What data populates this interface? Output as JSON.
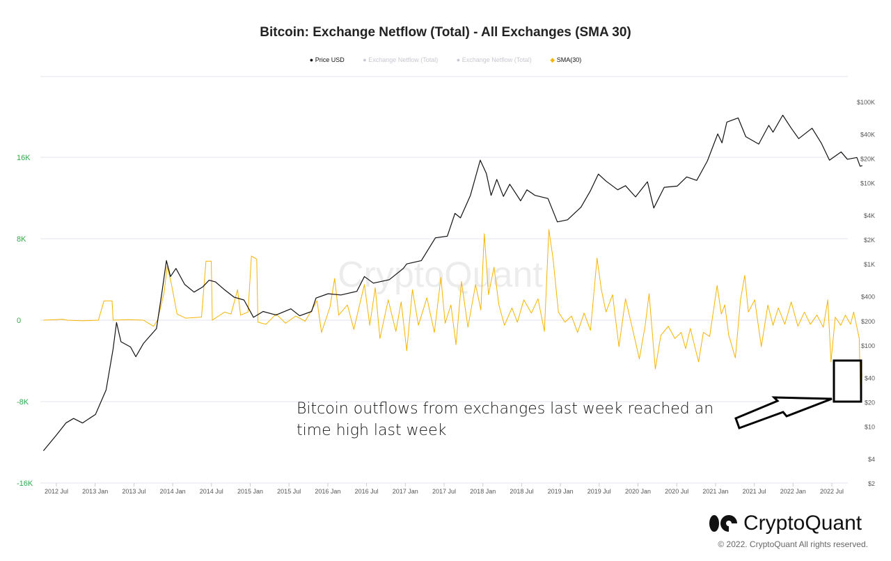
{
  "chart_data": {
    "type": "line",
    "title": "Bitcoin: Exchange Netflow (Total) - All Exchanges (SMA 30)",
    "legend": [
      {
        "name": "Price USD",
        "color": "#111111",
        "active": true
      },
      {
        "name": "Exchange Netflow (Total)",
        "color": "#c8c8d0",
        "active": false
      },
      {
        "name": "Exchange Netflow (Total)",
        "color": "#c8c8d0",
        "active": false
      },
      {
        "name": "SMA(30)",
        "color": "#f5b400",
        "active": true
      }
    ],
    "legend_position": "top",
    "left_axis": {
      "ticks": [
        "16K",
        "8K",
        "0",
        "-8K",
        "-16K"
      ],
      "values": [
        16000,
        8000,
        0,
        -8000,
        -16000
      ],
      "range": [
        -16000,
        16000
      ],
      "color": "#2eaa4a"
    },
    "right_axis": {
      "scale": "log",
      "ticks": [
        "$100K",
        "$40K",
        "$20K",
        "$10K",
        "$4K",
        "$2K",
        "$1K",
        "$400",
        "$200",
        "$100",
        "$40",
        "$20",
        "$10",
        "$4",
        "$2"
      ],
      "values": [
        100000,
        40000,
        20000,
        10000,
        4000,
        2000,
        1000,
        400,
        200,
        100,
        40,
        20,
        10,
        4,
        2
      ],
      "range": [
        2,
        100000
      ]
    },
    "x_axis": {
      "ticks": [
        "2012 Jul",
        "2013 Jan",
        "2013 Jul",
        "2014 Jan",
        "2014 Jul",
        "2015 Jan",
        "2015 Jul",
        "2016 Jan",
        "2016 Jul",
        "2017 Jan",
        "2017 Jul",
        "2018 Jan",
        "2018 Jul",
        "2019 Jan",
        "2019 Jul",
        "2020 Jan",
        "2020 Jul",
        "2021 Jan",
        "2021 Jul",
        "2022 Jan",
        "2022 Jul"
      ]
    },
    "grid": true,
    "series": [
      {
        "name": "Price USD",
        "axis": "right",
        "color": "#111111",
        "points": [
          [
            "2012-05-01",
            5
          ],
          [
            "2012-07-01",
            7.8
          ],
          [
            "2012-08-15",
            11
          ],
          [
            "2012-09-20",
            12.5
          ],
          [
            "2012-11-01",
            11
          ],
          [
            "2013-01-01",
            14
          ],
          [
            "2013-02-20",
            28
          ],
          [
            "2013-03-25",
            90
          ],
          [
            "2013-04-10",
            190
          ],
          [
            "2013-05-01",
            110
          ],
          [
            "2013-06-15",
            95
          ],
          [
            "2013-07-10",
            72
          ],
          [
            "2013-08-15",
            105
          ],
          [
            "2013-10-15",
            160
          ],
          [
            "2013-11-10",
            450
          ],
          [
            "2013-12-01",
            1100
          ],
          [
            "2013-12-20",
            700
          ],
          [
            "2014-01-15",
            880
          ],
          [
            "2014-02-25",
            560
          ],
          [
            "2014-04-10",
            450
          ],
          [
            "2014-05-20",
            520
          ],
          [
            "2014-06-20",
            630
          ],
          [
            "2014-07-20",
            600
          ],
          [
            "2014-09-01",
            480
          ],
          [
            "2014-10-15",
            390
          ],
          [
            "2014-12-01",
            360
          ],
          [
            "2015-01-15",
            220
          ],
          [
            "2015-03-01",
            260
          ],
          [
            "2015-05-01",
            235
          ],
          [
            "2015-07-10",
            280
          ],
          [
            "2015-08-20",
            230
          ],
          [
            "2015-10-15",
            260
          ],
          [
            "2015-11-05",
            380
          ],
          [
            "2016-01-01",
            430
          ],
          [
            "2016-03-01",
            415
          ],
          [
            "2016-05-15",
            460
          ],
          [
            "2016-06-20",
            700
          ],
          [
            "2016-08-01",
            580
          ],
          [
            "2016-10-15",
            640
          ],
          [
            "2016-12-20",
            880
          ],
          [
            "2017-01-05",
            1000
          ],
          [
            "2017-03-15",
            1100
          ],
          [
            "2017-05-20",
            2100
          ],
          [
            "2017-07-15",
            2200
          ],
          [
            "2017-08-20",
            4200
          ],
          [
            "2017-09-15",
            3700
          ],
          [
            "2017-11-01",
            7000
          ],
          [
            "2017-12-17",
            19000
          ],
          [
            "2018-01-15",
            13000
          ],
          [
            "2018-02-06",
            7000
          ],
          [
            "2018-03-05",
            11000
          ],
          [
            "2018-04-05",
            6800
          ],
          [
            "2018-05-05",
            9600
          ],
          [
            "2018-06-25",
            6000
          ],
          [
            "2018-07-25",
            8200
          ],
          [
            "2018-09-01",
            7000
          ],
          [
            "2018-11-01",
            6400
          ],
          [
            "2018-12-15",
            3300
          ],
          [
            "2019-02-01",
            3500
          ],
          [
            "2019-04-05",
            5000
          ],
          [
            "2019-05-20",
            8000
          ],
          [
            "2019-06-26",
            12800
          ],
          [
            "2019-08-01",
            10500
          ],
          [
            "2019-09-25",
            8200
          ],
          [
            "2019-11-01",
            9200
          ],
          [
            "2019-12-18",
            6700
          ],
          [
            "2020-02-12",
            10300
          ],
          [
            "2020-03-13",
            4900
          ],
          [
            "2020-05-01",
            8800
          ],
          [
            "2020-07-01",
            9100
          ],
          [
            "2020-08-15",
            11800
          ],
          [
            "2020-10-01",
            10700
          ],
          [
            "2020-11-20",
            18500
          ],
          [
            "2021-01-08",
            40000
          ],
          [
            "2021-01-28",
            31000
          ],
          [
            "2021-02-20",
            56000
          ],
          [
            "2021-04-14",
            63000
          ],
          [
            "2021-05-20",
            37000
          ],
          [
            "2021-07-20",
            30000
          ],
          [
            "2021-09-05",
            51000
          ],
          [
            "2021-09-25",
            42000
          ],
          [
            "2021-11-10",
            68000
          ],
          [
            "2021-12-20",
            47000
          ],
          [
            "2022-01-24",
            35000
          ],
          [
            "2022-03-28",
            47000
          ],
          [
            "2022-05-10",
            31000
          ],
          [
            "2022-06-18",
            19000
          ],
          [
            "2022-08-12",
            24000
          ],
          [
            "2022-09-10",
            19500
          ],
          [
            "2022-10-25",
            20500
          ],
          [
            "2022-11-09",
            16000
          ],
          [
            "2022-11-20",
            16300
          ]
        ]
      },
      {
        "name": "SMA(30)",
        "axis": "left",
        "color": "#f5b400",
        "points": [
          [
            "2012-05-01",
            0
          ],
          [
            "2012-08-01",
            80
          ],
          [
            "2012-08-20",
            0
          ],
          [
            "2012-11-01",
            -60
          ],
          [
            "2013-01-15",
            0
          ],
          [
            "2013-02-10",
            1900
          ],
          [
            "2013-03-20",
            1900
          ],
          [
            "2013-03-25",
            0
          ],
          [
            "2013-06-01",
            50
          ],
          [
            "2013-08-15",
            0
          ],
          [
            "2013-10-01",
            -600
          ],
          [
            "2013-10-20",
            0
          ],
          [
            "2013-11-20",
            2700
          ],
          [
            "2013-12-05",
            5300
          ],
          [
            "2013-12-25",
            3500
          ],
          [
            "2014-01-20",
            600
          ],
          [
            "2014-03-01",
            200
          ],
          [
            "2014-05-15",
            300
          ],
          [
            "2014-06-05",
            5800
          ],
          [
            "2014-06-30",
            5800
          ],
          [
            "2014-07-05",
            0
          ],
          [
            "2014-09-01",
            800
          ],
          [
            "2014-10-01",
            600
          ],
          [
            "2014-11-01",
            3000
          ],
          [
            "2014-11-15",
            500
          ],
          [
            "2014-12-20",
            800
          ],
          [
            "2015-01-05",
            6300
          ],
          [
            "2015-01-30",
            6000
          ],
          [
            "2015-02-05",
            -200
          ],
          [
            "2015-03-15",
            -400
          ],
          [
            "2015-05-01",
            600
          ],
          [
            "2015-06-15",
            -300
          ],
          [
            "2015-08-01",
            400
          ],
          [
            "2015-09-15",
            -100
          ],
          [
            "2015-11-10",
            1900
          ],
          [
            "2015-12-01",
            -1200
          ],
          [
            "2016-01-10",
            1300
          ],
          [
            "2016-02-01",
            4100
          ],
          [
            "2016-02-20",
            500
          ],
          [
            "2016-04-01",
            1500
          ],
          [
            "2016-05-01",
            -900
          ],
          [
            "2016-06-20",
            3500
          ],
          [
            "2016-07-15",
            -500
          ],
          [
            "2016-08-10",
            3200
          ],
          [
            "2016-09-01",
            -1800
          ],
          [
            "2016-10-10",
            2000
          ],
          [
            "2016-11-15",
            -1100
          ],
          [
            "2016-12-10",
            1800
          ],
          [
            "2017-01-05",
            -3000
          ],
          [
            "2017-02-01",
            3000
          ],
          [
            "2017-03-01",
            -500
          ],
          [
            "2017-04-10",
            2200
          ],
          [
            "2017-05-15",
            -1200
          ],
          [
            "2017-06-15",
            4200
          ],
          [
            "2017-07-05",
            -300
          ],
          [
            "2017-08-01",
            1500
          ],
          [
            "2017-08-25",
            -2400
          ],
          [
            "2017-09-20",
            3800
          ],
          [
            "2017-10-20",
            -700
          ],
          [
            "2017-11-25",
            3500
          ],
          [
            "2017-12-20",
            1000
          ],
          [
            "2018-01-05",
            8500
          ],
          [
            "2018-01-25",
            2500
          ],
          [
            "2018-02-20",
            5200
          ],
          [
            "2018-03-15",
            1500
          ],
          [
            "2018-04-10",
            -500
          ],
          [
            "2018-05-15",
            1200
          ],
          [
            "2018-06-10",
            -200
          ],
          [
            "2018-07-10",
            2000
          ],
          [
            "2018-08-15",
            700
          ],
          [
            "2018-09-15",
            2100
          ],
          [
            "2018-10-15",
            -1100
          ],
          [
            "2018-11-05",
            8900
          ],
          [
            "2018-11-25",
            6000
          ],
          [
            "2018-12-20",
            800
          ],
          [
            "2019-01-20",
            -200
          ],
          [
            "2019-02-20",
            400
          ],
          [
            "2019-03-20",
            -1200
          ],
          [
            "2019-04-20",
            700
          ],
          [
            "2019-05-20",
            -1000
          ],
          [
            "2019-06-20",
            6100
          ],
          [
            "2019-07-10",
            3000
          ],
          [
            "2019-08-01",
            800
          ],
          [
            "2019-09-01",
            2500
          ],
          [
            "2019-10-01",
            -2600
          ],
          [
            "2019-11-01",
            2100
          ],
          [
            "2019-12-01",
            -600
          ],
          [
            "2020-01-05",
            -3800
          ],
          [
            "2020-02-01",
            -600
          ],
          [
            "2020-02-20",
            2600
          ],
          [
            "2020-03-20",
            -4800
          ],
          [
            "2020-04-15",
            -1500
          ],
          [
            "2020-05-20",
            -600
          ],
          [
            "2020-06-20",
            -1800
          ],
          [
            "2020-07-20",
            -1200
          ],
          [
            "2020-08-10",
            -2800
          ],
          [
            "2020-09-01",
            -800
          ],
          [
            "2020-10-10",
            -4100
          ],
          [
            "2020-11-01",
            -1200
          ],
          [
            "2020-12-01",
            -1600
          ],
          [
            "2021-01-05",
            3400
          ],
          [
            "2021-01-25",
            600
          ],
          [
            "2021-02-10",
            1500
          ],
          [
            "2021-03-01",
            -1500
          ],
          [
            "2021-04-01",
            -3700
          ],
          [
            "2021-04-25",
            2000
          ],
          [
            "2021-05-15",
            4400
          ],
          [
            "2021-06-01",
            800
          ],
          [
            "2021-07-01",
            2000
          ],
          [
            "2021-08-01",
            -2600
          ],
          [
            "2021-09-01",
            1500
          ],
          [
            "2021-09-25",
            -500
          ],
          [
            "2021-10-20",
            1200
          ],
          [
            "2021-11-20",
            -400
          ],
          [
            "2021-12-20",
            1800
          ],
          [
            "2022-01-20",
            -600
          ],
          [
            "2022-02-20",
            800
          ],
          [
            "2022-03-20",
            -400
          ],
          [
            "2022-04-20",
            500
          ],
          [
            "2022-05-20",
            -700
          ],
          [
            "2022-06-10",
            2000
          ],
          [
            "2022-06-25",
            -4100
          ],
          [
            "2022-07-15",
            300
          ],
          [
            "2022-08-10",
            -500
          ],
          [
            "2022-09-01",
            500
          ],
          [
            "2022-09-25",
            -400
          ],
          [
            "2022-10-10",
            800
          ],
          [
            "2022-10-25",
            -700
          ],
          [
            "2022-11-05",
            -1800
          ],
          [
            "2022-11-10",
            -6800
          ],
          [
            "2022-11-14",
            -4000
          ],
          [
            "2022-11-18",
            -5500
          ]
        ]
      }
    ]
  },
  "annotation": {
    "text": "Bitcoin outflows from exchanges last week reached an time high last week"
  },
  "watermark": "CryptoQuant",
  "footer": {
    "brand": "CryptoQuant",
    "copyright": "© 2022. CryptoQuant All rights reserved."
  }
}
